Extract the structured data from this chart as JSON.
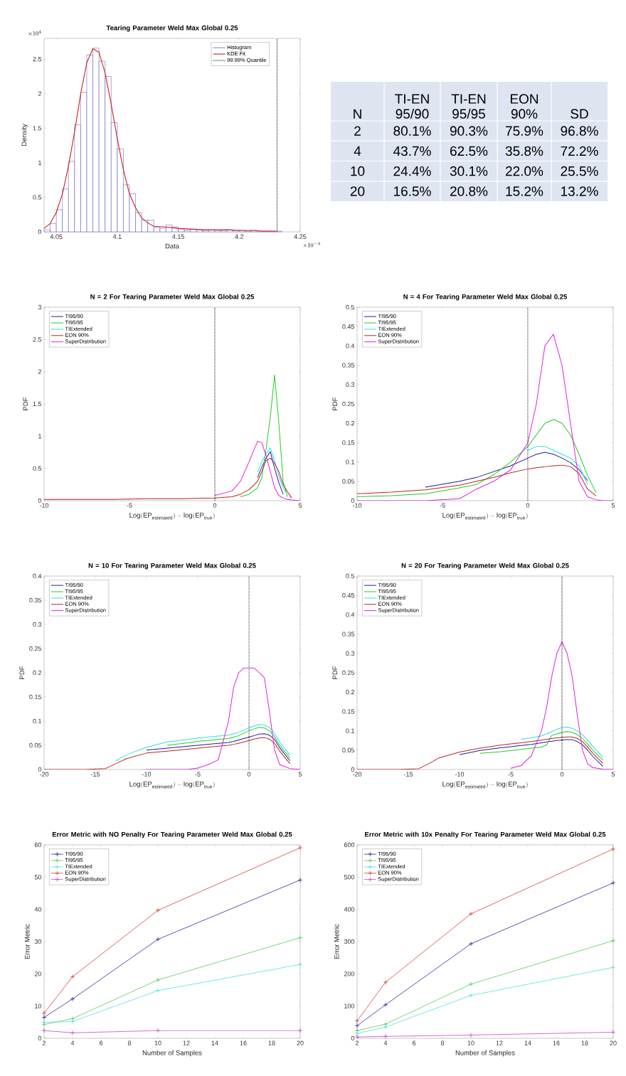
{
  "chart_data": [
    {
      "type": "histogram",
      "title": "Tearing Parameter Weld Max Global 0.25",
      "xlabel": "Data",
      "ylabel": "Density",
      "legend": "top right",
      "xlim": [
        4.04,
        4.25
      ],
      "xticks": [
        4.05,
        4.1,
        4.15,
        4.2,
        4.25
      ],
      "ylim": [
        0,
        2.8
      ],
      "yticks": [
        0,
        0.5,
        1,
        1.5,
        2,
        2.5
      ],
      "annotations": [
        "\\times 10^{4}",
        "\\times 10^{-3}"
      ],
      "series": [
        {
          "name": "Histogram",
          "type": "histogram",
          "color": "#4a4ab4",
          "bins": [
            4.04,
            4.045,
            4.05,
            4.055,
            4.06,
            4.065,
            4.07,
            4.075,
            4.08,
            4.085,
            4.09,
            4.095,
            4.1,
            4.105,
            4.11,
            4.115,
            4.12,
            4.125,
            4.13,
            4.135,
            4.14,
            4.145,
            4.15,
            4.155,
            4.16,
            4.165,
            4.17,
            4.175,
            4.18,
            4.185,
            4.19,
            4.195,
            4.2,
            4.205,
            4.21,
            4.215,
            4.22,
            4.225,
            4.23,
            4.235
          ],
          "values": [
            0.03,
            0.12,
            0.32,
            0.62,
            1.02,
            1.55,
            2.02,
            2.56,
            2.66,
            2.47,
            2.25,
            1.58,
            1.2,
            0.68,
            0.55,
            0.28,
            0.17,
            0.17,
            0.06,
            0.05,
            0.1,
            0.07,
            0.04,
            0.02,
            0.04,
            0.03,
            0.02,
            0.03,
            0.02,
            0.02,
            0.03,
            0.02,
            0.02,
            0.01,
            0.02,
            0.01,
            0.01,
            0.01,
            0.01
          ]
        },
        {
          "name": "KDE Fit",
          "type": "line",
          "color": "#cc2020",
          "x": [
            4.04,
            4.045,
            4.05,
            4.055,
            4.06,
            4.065,
            4.07,
            4.075,
            4.08,
            4.085,
            4.09,
            4.095,
            4.1,
            4.105,
            4.11,
            4.115,
            4.12,
            4.125,
            4.13,
            4.14,
            4.15,
            4.16,
            4.17,
            4.18,
            4.19,
            4.2,
            4.21,
            4.22,
            4.23
          ],
          "values": [
            0.05,
            0.12,
            0.28,
            0.55,
            0.95,
            1.45,
            2.0,
            2.45,
            2.65,
            2.6,
            2.3,
            1.85,
            1.35,
            0.9,
            0.55,
            0.35,
            0.2,
            0.13,
            0.08,
            0.07,
            0.05,
            0.04,
            0.03,
            0.03,
            0.03,
            0.02,
            0.02,
            0.01,
            0.01
          ]
        }
      ],
      "ref_lines": [
        {
          "axis": "x",
          "value": 4.231,
          "label": "99.99% Quantile",
          "color": "#000000",
          "line_style": "dotted"
        }
      ]
    },
    {
      "type": "line",
      "title": "N = 2 For Tearing Parameter Weld Max Global 0.25",
      "xlabel": "\\mathrm{Log(EP}_{\\mathrm{estimated}}\\mathrm{) - log(EP}_{\\mathrm{true}}\\mathrm{)}",
      "ylabel": "PDF",
      "legend": "top left",
      "xlim": [
        -10,
        5
      ],
      "xticks": [
        -10,
        -5,
        0,
        5
      ],
      "ylim": [
        0,
        3
      ],
      "yticks": [
        0,
        0.5,
        1,
        1.5,
        2,
        2.5,
        3
      ],
      "x": [
        -10,
        -8,
        -6,
        -4,
        -2,
        0,
        1,
        1.5,
        2,
        2.5,
        2.75,
        3,
        3.25,
        3.5,
        3.75,
        4,
        4.25,
        4.5,
        5
      ],
      "series": [
        {
          "name": "TI95/90",
          "color": "#1f1f99",
          "values": [
            null,
            null,
            null,
            null,
            null,
            null,
            null,
            null,
            null,
            0.36,
            0.52,
            0.66,
            0.76,
            0.5,
            0.28,
            0.1,
            null,
            null,
            null
          ]
        },
        {
          "name": "TI95/95",
          "color": "#22cc22",
          "values": [
            null,
            null,
            null,
            null,
            null,
            null,
            null,
            0.06,
            0.1,
            0.2,
            0.35,
            0.8,
            1.3,
            1.95,
            1.2,
            0.3,
            0.06,
            null,
            null
          ]
        },
        {
          "name": "TIExtended",
          "color": "#33dddd",
          "values": [
            null,
            null,
            null,
            null,
            null,
            null,
            null,
            null,
            null,
            0.44,
            0.6,
            0.72,
            0.82,
            0.62,
            0.38,
            0.2,
            0.09,
            null,
            null
          ]
        },
        {
          "name": "EON 90%",
          "color": "#bb2222",
          "values": [
            0.02,
            0.02,
            0.02,
            0.03,
            0.03,
            0.04,
            0.06,
            0.1,
            0.17,
            0.3,
            0.45,
            0.62,
            0.66,
            0.58,
            0.45,
            0.25,
            0.14,
            0.04,
            null
          ]
        },
        {
          "name": "SuperDistribution",
          "color": "#dd22dd",
          "values": [
            null,
            null,
            null,
            null,
            null,
            0.08,
            0.15,
            0.3,
            0.6,
            0.92,
            0.9,
            0.7,
            0.45,
            0.2,
            0.08,
            0.04,
            0.02,
            0.01,
            0
          ]
        }
      ],
      "ref_lines": [
        {
          "axis": "x",
          "value": 0,
          "color": "#000000",
          "line_style": "dotted"
        }
      ]
    },
    {
      "type": "line",
      "title": "N = 4 For Tearing Parameter Weld Max Global 0.25",
      "xlabel": "\\mathrm{Log(EP}_{\\mathrm{estimated}}\\mathrm{) - log(EP}_{\\mathrm{true}}\\mathrm{)}",
      "ylabel": "PDF",
      "legend": "top left",
      "xlim": [
        -10,
        5
      ],
      "xticks": [
        -10,
        -5,
        0,
        5
      ],
      "ylim": [
        0,
        0.5
      ],
      "yticks": [
        0,
        0.05,
        0.1,
        0.15,
        0.2,
        0.25,
        0.3,
        0.35,
        0.4,
        0.45,
        0.5
      ],
      "x": [
        -10,
        -8,
        -6,
        -4,
        -3,
        -2,
        -1,
        0,
        0.5,
        1,
        1.5,
        2,
        2.5,
        3,
        3.5,
        4,
        4.5,
        5
      ],
      "series": [
        {
          "name": "TI95/90",
          "color": "#1f1f99",
          "values": [
            null,
            null,
            0.035,
            0.05,
            0.06,
            0.075,
            0.09,
            0.11,
            0.12,
            0.125,
            0.12,
            0.11,
            0.098,
            0.08,
            0.052,
            null,
            null,
            null
          ]
        },
        {
          "name": "TI95/95",
          "color": "#22cc22",
          "values": [
            0.01,
            0.013,
            0.018,
            0.033,
            0.042,
            0.067,
            0.1,
            0.14,
            0.17,
            0.2,
            0.21,
            0.2,
            0.17,
            0.12,
            0.065,
            0.02,
            null,
            null
          ]
        },
        {
          "name": "TIExtended",
          "color": "#33dddd",
          "values": [
            null,
            null,
            null,
            null,
            null,
            null,
            null,
            0.13,
            0.14,
            0.14,
            0.13,
            0.12,
            0.11,
            0.09,
            0.042,
            null,
            null,
            null
          ]
        },
        {
          "name": "EON 90%",
          "color": "#bb2222",
          "values": [
            0.018,
            0.022,
            0.028,
            0.04,
            0.05,
            0.06,
            0.072,
            0.082,
            0.085,
            0.088,
            0.09,
            0.092,
            0.088,
            0.07,
            0.03,
            0.012,
            null,
            null
          ]
        },
        {
          "name": "SuperDistribution",
          "color": "#dd22dd",
          "values": [
            0,
            0,
            0,
            0.005,
            0.03,
            0.05,
            0.08,
            0.15,
            0.25,
            0.4,
            0.43,
            0.35,
            0.2,
            0.05,
            0.01,
            0.002,
            0,
            0
          ]
        }
      ],
      "ref_lines": [
        {
          "axis": "x",
          "value": 0,
          "color": "#000000",
          "line_style": "dotted"
        }
      ]
    },
    {
      "type": "line",
      "title": "N = 10 For Tearing Parameter Weld Max Global 0.25",
      "xlabel": "\\mathrm{Log(EP}_{\\mathrm{estimated}}\\mathrm{) - log(EP}_{\\mathrm{true}}\\mathrm{)}",
      "ylabel": "PDF",
      "legend": "top left",
      "xlim": [
        -20,
        5
      ],
      "xticks": [
        -20,
        -15,
        -10,
        -5,
        0,
        5
      ],
      "ylim": [
        0,
        0.4
      ],
      "yticks": [
        0,
        0.05,
        0.1,
        0.15,
        0.2,
        0.25,
        0.3,
        0.35,
        0.4
      ],
      "x": [
        -20,
        -16,
        -14,
        -13,
        -12,
        -10,
        -8,
        -6,
        -5,
        -4,
        -3,
        -2,
        -1.5,
        -1,
        -0.5,
        0,
        0.5,
        1,
        1.5,
        2,
        2.5,
        3,
        4,
        5
      ],
      "series": [
        {
          "name": "TI95/90",
          "color": "#1f1f99",
          "values": [
            null,
            null,
            null,
            null,
            null,
            0.04,
            0.044,
            0.048,
            0.05,
            0.052,
            0.054,
            0.056,
            0.058,
            0.061,
            0.064,
            0.067,
            0.07,
            0.073,
            0.074,
            0.071,
            0.062,
            0.045,
            0.018,
            null
          ]
        },
        {
          "name": "TI95/95",
          "color": "#22cc22",
          "values": [
            null,
            null,
            null,
            null,
            null,
            null,
            0.05,
            0.055,
            0.058,
            0.06,
            0.062,
            0.064,
            0.067,
            0.07,
            0.075,
            0.08,
            0.084,
            0.087,
            0.086,
            0.08,
            0.068,
            0.05,
            0.024,
            null
          ]
        },
        {
          "name": "TIExtended",
          "color": "#33dddd",
          "values": [
            null,
            null,
            null,
            0.018,
            0.03,
            0.046,
            0.057,
            0.062,
            0.065,
            0.067,
            0.069,
            0.071,
            0.074,
            0.077,
            0.081,
            0.086,
            0.09,
            0.093,
            0.092,
            0.087,
            0.075,
            0.057,
            0.03,
            null
          ]
        },
        {
          "name": "EON 90%",
          "color": "#bb2222",
          "values": [
            0,
            0,
            0.002,
            0.012,
            0.022,
            0.034,
            0.038,
            0.042,
            0.044,
            0.046,
            0.048,
            0.05,
            0.052,
            0.054,
            0.057,
            0.06,
            0.063,
            0.065,
            0.066,
            0.063,
            0.054,
            0.038,
            0.012,
            null
          ]
        },
        {
          "name": "SuperDistribution",
          "color": "#dd22dd",
          "values": [
            null,
            null,
            null,
            null,
            null,
            0,
            0,
            0,
            0.003,
            0.01,
            0.02,
            0.1,
            0.17,
            0.2,
            0.21,
            0.21,
            0.21,
            0.2,
            0.19,
            0.12,
            0.04,
            0.01,
            0.002,
            0
          ]
        }
      ],
      "ref_lines": [
        {
          "axis": "x",
          "value": 0,
          "color": "#000000",
          "line_style": "dotted"
        }
      ]
    },
    {
      "type": "line",
      "title": "N = 20 For Tearing Parameter Weld Max Global 0.25",
      "xlabel": "\\mathrm{Log(EP}_{\\mathrm{estimated}}\\mathrm{) - log(EP}_{\\mathrm{true}}\\mathrm{)}",
      "ylabel": "PDF",
      "legend": "top left",
      "xlim": [
        -20,
        5
      ],
      "xticks": [
        -20,
        -15,
        -10,
        -5,
        0,
        5
      ],
      "ylim": [
        0,
        0.5
      ],
      "yticks": [
        0,
        0.05,
        0.1,
        0.15,
        0.2,
        0.25,
        0.3,
        0.35,
        0.4,
        0.45,
        0.5
      ],
      "x": [
        -20,
        -16,
        -14,
        -13,
        -12,
        -10,
        -8,
        -6,
        -5,
        -4,
        -3,
        -2,
        -1.5,
        -1,
        -0.5,
        0,
        0.5,
        1,
        1.5,
        2,
        2.5,
        3,
        4,
        5
      ],
      "series": [
        {
          "name": "TI95/90",
          "color": "#1f1f99",
          "values": [
            null,
            null,
            null,
            null,
            null,
            0.038,
            0.049,
            0.056,
            0.059,
            0.062,
            0.065,
            0.069,
            0.071,
            0.073,
            0.075,
            0.076,
            0.077,
            0.077,
            0.072,
            0.064,
            0.05,
            0.034,
            0.008,
            null
          ]
        },
        {
          "name": "TI95/95",
          "color": "#22cc22",
          "values": [
            null,
            null,
            null,
            null,
            null,
            null,
            0.042,
            0.046,
            0.049,
            0.052,
            0.055,
            0.058,
            0.064,
            0.088,
            0.092,
            0.096,
            0.098,
            0.096,
            0.09,
            0.08,
            0.066,
            0.05,
            0.024,
            null
          ]
        },
        {
          "name": "TIExtended",
          "color": "#33dddd",
          "values": [
            null,
            null,
            null,
            null,
            null,
            null,
            null,
            null,
            null,
            0.078,
            0.082,
            0.087,
            0.092,
            0.098,
            0.104,
            0.108,
            0.11,
            0.106,
            0.1,
            0.09,
            0.076,
            0.06,
            0.032,
            null
          ]
        },
        {
          "name": "EON 90%",
          "color": "#bb2222",
          "values": [
            0,
            0,
            0.002,
            0.015,
            0.03,
            0.045,
            0.055,
            0.063,
            0.066,
            0.069,
            0.072,
            0.076,
            0.078,
            0.08,
            0.082,
            0.083,
            0.084,
            0.084,
            0.08,
            0.072,
            0.058,
            0.042,
            0.016,
            null
          ]
        },
        {
          "name": "SuperDistribution",
          "color": "#dd22dd",
          "values": [
            null,
            null,
            null,
            null,
            null,
            null,
            null,
            null,
            0.003,
            0.01,
            0.035,
            0.1,
            0.16,
            0.24,
            0.3,
            0.33,
            0.3,
            0.24,
            0.14,
            0.05,
            0.015,
            0.005,
            0.001,
            0
          ]
        }
      ],
      "ref_lines": [
        {
          "axis": "x",
          "value": 0,
          "color": "#000000",
          "line_style": "dotted"
        }
      ]
    },
    {
      "type": "line",
      "title": "Error Metric with NO Penalty For Tearing Parameter Weld Max Global 0.25",
      "xlabel": "Number of Samples",
      "ylabel": "Error Metric",
      "legend": "top left",
      "marker": "cross",
      "xlim": [
        2,
        20
      ],
      "xticks": [
        2,
        4,
        6,
        8,
        10,
        12,
        14,
        16,
        18,
        20
      ],
      "ylim": [
        0,
        60
      ],
      "yticks": [
        0,
        10,
        20,
        30,
        40,
        50,
        60
      ],
      "x": [
        2,
        4,
        10,
        20
      ],
      "series": [
        {
          "name": "TI95/90",
          "color": "#2a2a9a",
          "values": [
            6.5,
            12.2,
            30.7,
            49.1
          ]
        },
        {
          "name": "TI95/95",
          "color": "#55cc55",
          "values": [
            4.3,
            6.1,
            18.1,
            31.2
          ]
        },
        {
          "name": "TIExtended",
          "color": "#55dddd",
          "values": [
            5.0,
            5.2,
            14.8,
            22.9
          ]
        },
        {
          "name": "EON 90%",
          "color": "#cc4433",
          "values": [
            7.8,
            19.1,
            39.7,
            59.1
          ]
        },
        {
          "name": "SuperDistribution",
          "color": "#cc44cc",
          "values": [
            2.4,
            1.7,
            2.4,
            2.4
          ]
        }
      ]
    },
    {
      "type": "line",
      "title": "Error Metric with 10x Penalty For Tearing Parameter Weld Max Global 0.25",
      "xlabel": "Number of Samples",
      "ylabel": "Error Metric",
      "legend": "top left",
      "marker": "cross",
      "xlim": [
        2,
        20
      ],
      "xticks": [
        2,
        4,
        6,
        8,
        10,
        12,
        14,
        16,
        18,
        20
      ],
      "ylim": [
        0,
        600
      ],
      "yticks": [
        0,
        100,
        200,
        300,
        400,
        500,
        600
      ],
      "x": [
        2,
        4,
        10,
        20
      ],
      "series": [
        {
          "name": "TI95/90",
          "color": "#2a2a9a",
          "values": [
            39,
            104,
            293,
            482
          ]
        },
        {
          "name": "TI95/95",
          "color": "#55cc55",
          "values": [
            24,
            44,
            168,
            303
          ]
        },
        {
          "name": "TIExtended",
          "color": "#55dddd",
          "values": [
            15,
            35,
            133,
            220
          ]
        },
        {
          "name": "EON 90%",
          "color": "#cc4433",
          "values": [
            54,
            174,
            386,
            587
          ]
        },
        {
          "name": "SuperDistribution",
          "color": "#cc44cc",
          "values": [
            4,
            6,
            10,
            19
          ]
        }
      ]
    },
    {
      "type": "other",
      "categories": [
        "N",
        "TI-EN 95/90",
        "TI-EN 95/95",
        "EON 90%",
        "SD"
      ],
      "y_categories": [
        "2",
        "4",
        "10",
        "20"
      ],
      "cell_labels": [
        [
          "80.1%",
          "90.3%",
          "75.9%",
          "96.8%"
        ],
        [
          "43.7%",
          "62.5%",
          "35.8%",
          "72.2%"
        ],
        [
          "24.4%",
          "30.1%",
          "22.0%",
          "25.5%"
        ],
        [
          "16.5%",
          "20.8%",
          "15.2%",
          "13.2%"
        ]
      ]
    }
  ]
}
